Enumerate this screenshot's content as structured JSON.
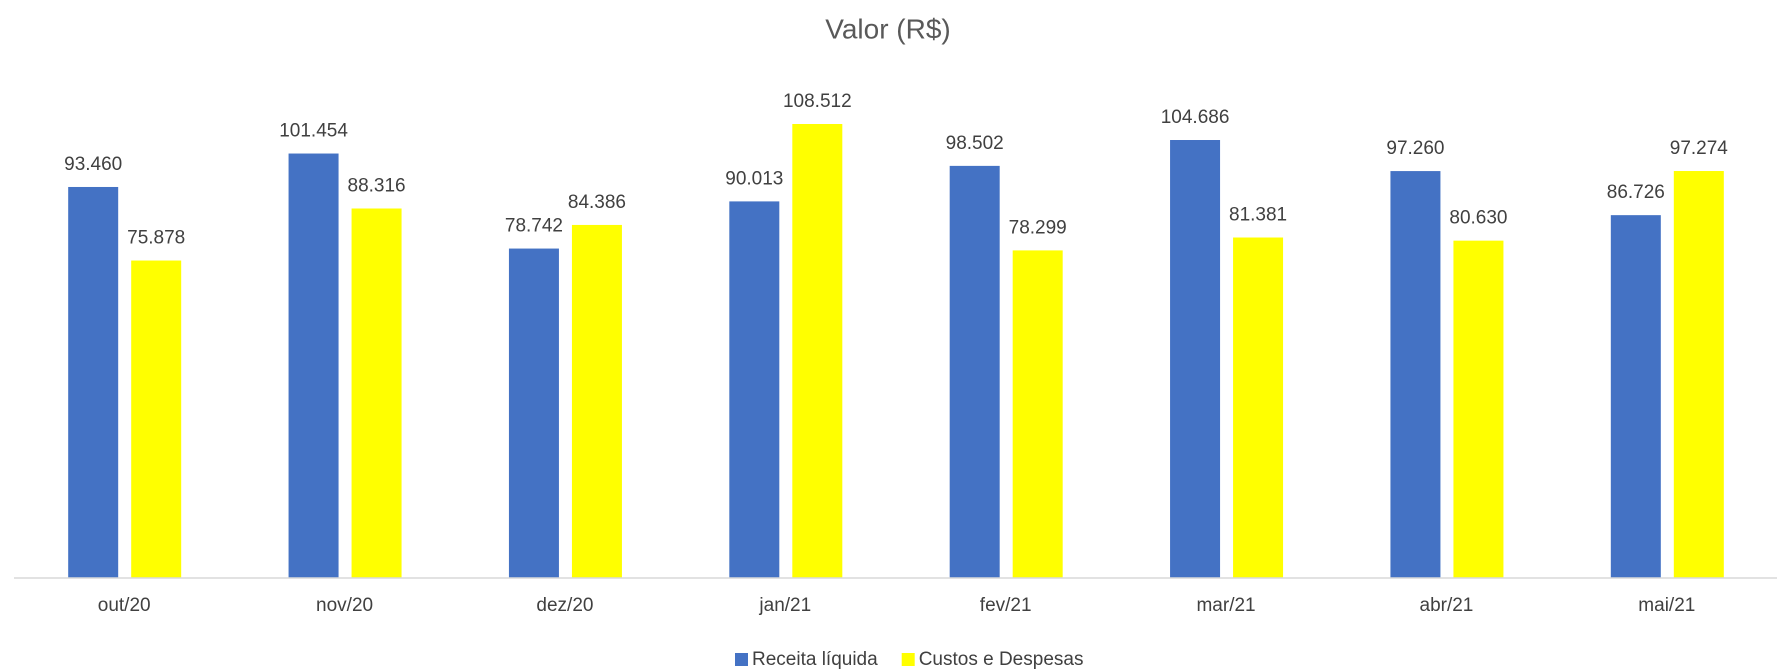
{
  "chart_data": {
    "type": "bar",
    "title": "Valor (R$)",
    "categories": [
      "out/20",
      "nov/20",
      "dez/20",
      "jan/21",
      "fev/21",
      "mar/21",
      "abr/21",
      "mai/21"
    ],
    "series": [
      {
        "name": "Receita líquida",
        "color": "#4472c4",
        "values": [
          93460,
          101454,
          78742,
          90013,
          98502,
          104686,
          97260,
          86726
        ],
        "value_labels": [
          "93.460",
          "101.454",
          "78.742",
          "90.013",
          "98.502",
          "104.686",
          "97.260",
          "86.726"
        ]
      },
      {
        "name": "Custos e Despesas",
        "color": "#ffff00",
        "values": [
          75878,
          88316,
          84386,
          108512,
          78299,
          81381,
          80630,
          97274
        ],
        "value_labels": [
          "75.878",
          "88.316",
          "84.386",
          "108.512",
          "78.299",
          "81.381",
          "80.630",
          "97.274"
        ]
      }
    ],
    "legend": "bottom"
  }
}
